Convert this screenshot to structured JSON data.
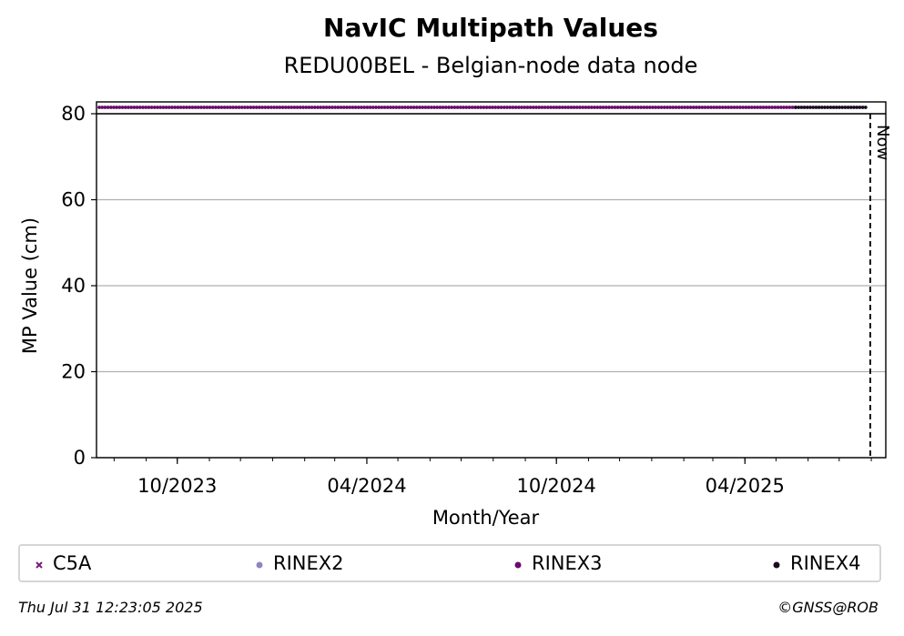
{
  "header": {
    "title": "NavIC Multipath Values",
    "subtitle": "REDU00BEL - Belgian-node data node"
  },
  "footer": {
    "timestamp": "Thu Jul 31 12:23:05 2025",
    "credit": "©GNSS@ROB"
  },
  "chart_data": {
    "type": "scatter",
    "title": "NavIC Multipath Values",
    "subtitle": "REDU00BEL - Belgian-node data node",
    "xlabel": "Month/Year",
    "ylabel": "MP Value (cm)",
    "ylim": [
      0,
      80
    ],
    "yticks": [
      0,
      20,
      40,
      60,
      80
    ],
    "xlim": [
      "2023-07-15",
      "2025-08-15"
    ],
    "xticks": [
      {
        "date": "2023-10-01",
        "label": "10/2023"
      },
      {
        "date": "2024-04-01",
        "label": "04/2024"
      },
      {
        "date": "2024-10-01",
        "label": "10/2024"
      },
      {
        "date": "2025-04-01",
        "label": "04/2025"
      }
    ],
    "grid": "horizontal",
    "now_marker": {
      "date": "2025-07-31",
      "label": "Now"
    },
    "legend_position": "bottom",
    "series": [
      {
        "name": "C5A",
        "color": "#7a1a7a",
        "marker": "x",
        "points": []
      },
      {
        "name": "RINEX2",
        "color": "#8c87c0",
        "marker": "o",
        "points": []
      },
      {
        "name": "RINEX3",
        "color": "#6a0a6a",
        "marker": "o",
        "x_range": [
          "2023-07-15",
          "2025-05-20"
        ],
        "value": 81.5
      },
      {
        "name": "RINEX4",
        "color": "#1a0a22",
        "marker": "o",
        "x_range": [
          "2025-05-20",
          "2025-07-28"
        ],
        "value": 81.5
      }
    ]
  }
}
